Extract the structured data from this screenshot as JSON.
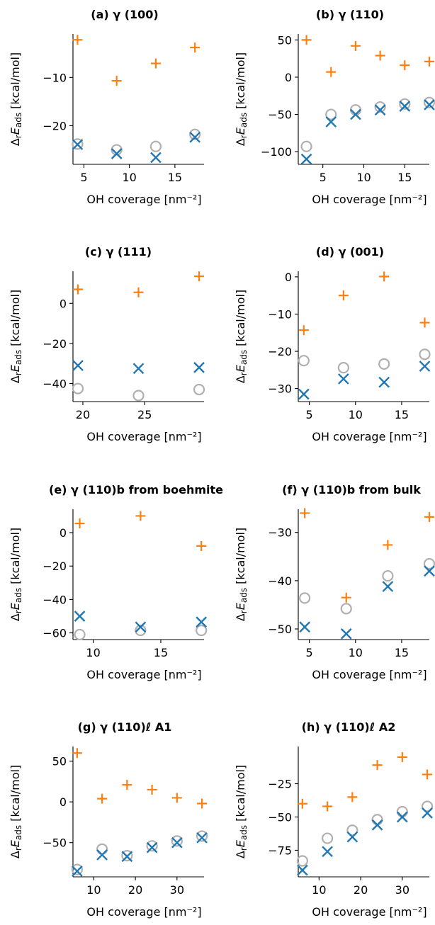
{
  "chart_data": [
    {
      "type": "scatter",
      "title": "(a) γ (100)",
      "xlabel": "OH coverage [nm⁻²]",
      "ylabel": "ΔrEads [kcal/mol]",
      "xlim": [
        3.8,
        18.2
      ],
      "ylim": [
        -28,
        -1
      ],
      "xticks": [
        5,
        10,
        15
      ],
      "yticks": [
        -20,
        -10
      ],
      "series": [
        {
          "marker": "plus",
          "color": "#ff7f0e",
          "x": [
            4.3,
            8.6,
            12.9,
            17.2
          ],
          "y": [
            -2.2,
            -10.7,
            -7.1,
            -3.8
          ]
        },
        {
          "marker": "circle",
          "color": "#b0b0b0",
          "x": [
            4.3,
            8.6,
            12.9,
            17.2
          ],
          "y": [
            -23.8,
            -25.0,
            -24.3,
            -21.8
          ]
        },
        {
          "marker": "x",
          "color": "#1f77b4",
          "x": [
            4.3,
            8.6,
            12.9,
            17.2
          ],
          "y": [
            -23.9,
            -25.8,
            -26.6,
            -22.4
          ]
        }
      ]
    },
    {
      "type": "scatter",
      "title": "(b) γ (110)",
      "xlabel": "OH coverage [nm⁻²]",
      "ylabel": "ΔrEads [kcal/mol]",
      "xlim": [
        2,
        18
      ],
      "ylim": [
        -117,
        58
      ],
      "xticks": [
        5,
        10,
        15
      ],
      "yticks": [
        -100,
        -50,
        0,
        50
      ],
      "series": [
        {
          "marker": "plus",
          "color": "#ff7f0e",
          "x": [
            3,
            6,
            9,
            12,
            15,
            18
          ],
          "y": [
            50,
            7,
            42,
            29,
            16,
            21
          ]
        },
        {
          "marker": "circle",
          "color": "#b0b0b0",
          "x": [
            3,
            6,
            9,
            12,
            15,
            18
          ],
          "y": [
            -93,
            -50,
            -44,
            -40,
            -36,
            -34
          ]
        },
        {
          "marker": "x",
          "color": "#1f77b4",
          "x": [
            3,
            6,
            9,
            12,
            15,
            18
          ],
          "y": [
            -110,
            -60,
            -50,
            -44,
            -39,
            -37
          ]
        }
      ]
    },
    {
      "type": "scatter",
      "title": "(c) γ (111)",
      "xlabel": "OH coverage [nm⁻²]",
      "ylabel": "ΔrEads [kcal/mol]",
      "xlim": [
        19.2,
        29.8
      ],
      "ylim": [
        -49,
        16
      ],
      "xticks": [
        20,
        25
      ],
      "yticks": [
        -40,
        -20,
        0
      ],
      "series": [
        {
          "marker": "plus",
          "color": "#ff7f0e",
          "x": [
            19.6,
            24.5,
            29.4
          ],
          "y": [
            7,
            5.5,
            13.5
          ]
        },
        {
          "marker": "circle",
          "color": "#b0b0b0",
          "x": [
            19.6,
            24.5,
            29.4
          ],
          "y": [
            -42.5,
            -46,
            -43
          ]
        },
        {
          "marker": "x",
          "color": "#1f77b4",
          "x": [
            19.6,
            24.5,
            29.4
          ],
          "y": [
            -31,
            -32.5,
            -32
          ]
        }
      ]
    },
    {
      "type": "scatter",
      "title": "(d) γ (001)",
      "xlabel": "OH coverage [nm⁻²]",
      "ylabel": "ΔrEads [kcal/mol]",
      "xlim": [
        3.8,
        18
      ],
      "ylim": [
        -33.5,
        1.5
      ],
      "xticks": [
        5,
        10,
        15
      ],
      "yticks": [
        -30,
        -20,
        -10,
        0
      ],
      "series": [
        {
          "marker": "plus",
          "color": "#ff7f0e",
          "x": [
            4.4,
            8.7,
            13.1,
            17.5
          ],
          "y": [
            -14.3,
            -5.0,
            0.1,
            -12.3
          ]
        },
        {
          "marker": "circle",
          "color": "#b0b0b0",
          "x": [
            4.4,
            8.7,
            13.1,
            17.5
          ],
          "y": [
            -22.5,
            -24.4,
            -23.4,
            -20.8
          ]
        },
        {
          "marker": "x",
          "color": "#1f77b4",
          "x": [
            4.4,
            8.7,
            13.1,
            17.5
          ],
          "y": [
            -31.5,
            -27.4,
            -28.3,
            -24.0
          ]
        }
      ]
    },
    {
      "type": "scatter",
      "title": "(e) γ (110)b from boehmite",
      "xlabel": "OH coverage [nm⁻²]",
      "ylabel": "ΔrEads [kcal/mol]",
      "xlim": [
        8.5,
        18.2
      ],
      "ylim": [
        -64,
        14
      ],
      "xticks": [
        10,
        15
      ],
      "yticks": [
        -60,
        -40,
        -20,
        0
      ],
      "series": [
        {
          "marker": "plus",
          "color": "#ff7f0e",
          "x": [
            9,
            13.5,
            18
          ],
          "y": [
            5.5,
            10,
            -8
          ]
        },
        {
          "marker": "circle",
          "color": "#b0b0b0",
          "x": [
            9,
            13.5,
            18
          ],
          "y": [
            -61,
            -58.5,
            -58.5
          ]
        },
        {
          "marker": "x",
          "color": "#1f77b4",
          "x": [
            9,
            13.5,
            18
          ],
          "y": [
            -50,
            -56.5,
            -53.5
          ]
        }
      ]
    },
    {
      "type": "scatter",
      "title": "(f) γ (110)b from bulk",
      "xlabel": "OH coverage [nm⁻²]",
      "ylabel": "ΔrEads [kcal/mol]",
      "xlim": [
        3.8,
        18
      ],
      "ylim": [
        -52.2,
        -25.2
      ],
      "xticks": [
        5,
        10,
        15
      ],
      "yticks": [
        -50,
        -40,
        -30
      ],
      "series": [
        {
          "marker": "plus",
          "color": "#ff7f0e",
          "x": [
            4.5,
            9,
            13.5,
            18
          ],
          "y": [
            -26.0,
            -43.5,
            -32.6,
            -26.8
          ]
        },
        {
          "marker": "circle",
          "color": "#b0b0b0",
          "x": [
            4.5,
            9,
            13.5,
            18
          ],
          "y": [
            -43.6,
            -45.8,
            -39.0,
            -36.5
          ]
        },
        {
          "marker": "x",
          "color": "#1f77b4",
          "x": [
            4.5,
            9,
            13.5,
            18
          ],
          "y": [
            -49.6,
            -51.0,
            -41.2,
            -38.0
          ]
        }
      ]
    },
    {
      "type": "scatter",
      "title": "(g) γ (110)ℓ A1",
      "xlabel": "OH coverage [nm⁻²]",
      "ylabel": "ΔrEads [kcal/mol]",
      "xlim": [
        5,
        36.5
      ],
      "ylim": [
        -92,
        68
      ],
      "xticks": [
        10,
        20,
        30
      ],
      "yticks": [
        -50,
        0,
        50
      ],
      "series": [
        {
          "marker": "plus",
          "color": "#ff7f0e",
          "x": [
            6,
            12,
            18,
            24,
            30,
            36
          ],
          "y": [
            60,
            4,
            21,
            15,
            5,
            -2
          ]
        },
        {
          "marker": "circle",
          "color": "#b0b0b0",
          "x": [
            6,
            12,
            18,
            24,
            30,
            36
          ],
          "y": [
            -83,
            -58,
            -66,
            -54,
            -48,
            -42
          ]
        },
        {
          "marker": "x",
          "color": "#1f77b4",
          "x": [
            6,
            12,
            18,
            24,
            30,
            36
          ],
          "y": [
            -85,
            -65,
            -67,
            -56,
            -50,
            -44
          ]
        }
      ]
    },
    {
      "type": "scatter",
      "title": "(h) γ (110)ℓ A2",
      "xlabel": "OH coverage [nm⁻²]",
      "ylabel": "ΔrEads [kcal/mol]",
      "xlim": [
        5,
        36.5
      ],
      "ylim": [
        -95,
        3
      ],
      "xticks": [
        10,
        20,
        30
      ],
      "yticks": [
        -75,
        -50,
        -25
      ],
      "series": [
        {
          "marker": "plus",
          "color": "#ff7f0e",
          "x": [
            6,
            12,
            18,
            24,
            30,
            36
          ],
          "y": [
            -40,
            -42,
            -35,
            -11,
            -5,
            -18
          ]
        },
        {
          "marker": "circle",
          "color": "#b0b0b0",
          "x": [
            6,
            12,
            18,
            24,
            30,
            36
          ],
          "y": [
            -83,
            -66,
            -60,
            -52,
            -46,
            -42
          ]
        },
        {
          "marker": "x",
          "color": "#1f77b4",
          "x": [
            6,
            12,
            18,
            24,
            30,
            36
          ],
          "y": [
            -90,
            -76,
            -65,
            -56,
            -50,
            -47
          ]
        }
      ]
    }
  ]
}
